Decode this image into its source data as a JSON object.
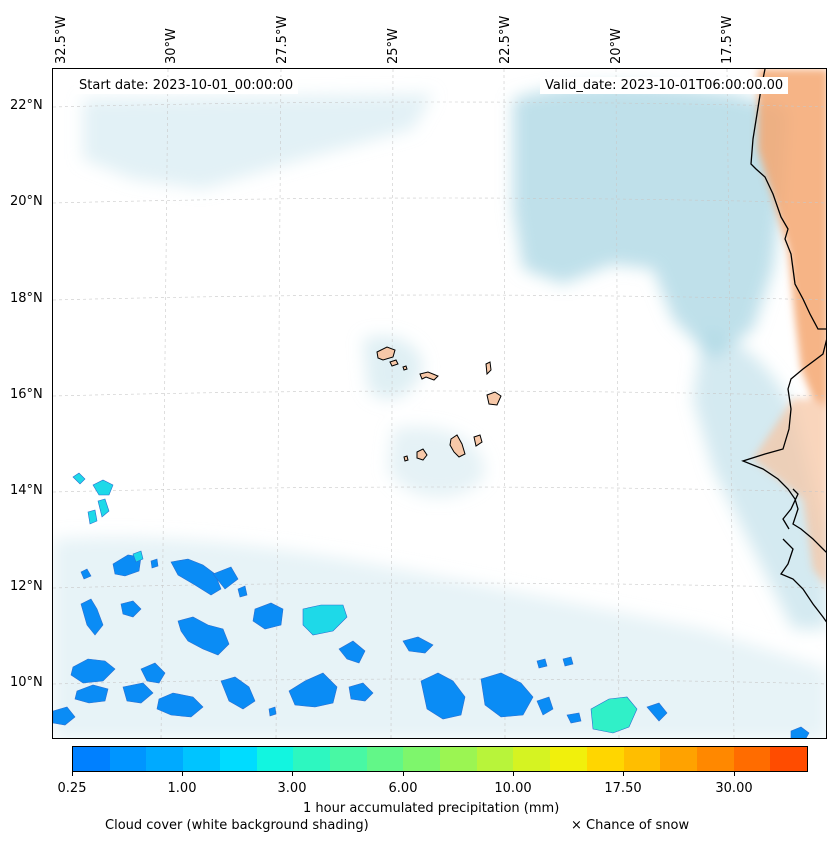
{
  "map": {
    "lon_labels": [
      "32.5°W",
      "30°W",
      "27.5°W",
      "25°W",
      "22.5°W",
      "20°W",
      "17.5°W"
    ],
    "lat_labels": [
      "22°N",
      "20°N",
      "18°N",
      "16°N",
      "14°N",
      "12°N",
      "10°N"
    ],
    "start_date": "Start date: 2023-10-01_00:00:00",
    "valid_date": "Valid_date: 2023-10-01T06:00:00.00",
    "extent": {
      "lon": [
        -32.6,
        -15.0
      ],
      "lat": [
        8.9,
        22.8
      ]
    }
  },
  "colorbar": {
    "title": "1 hour accumulated precipitation (mm)",
    "tick_labels": [
      "0.25",
      "1.00",
      "3.00",
      "6.00",
      "10.00",
      "17.50",
      "30.00"
    ],
    "colors": [
      "#0080ff",
      "#0095ff",
      "#00aaff",
      "#00c4ff",
      "#00dcff",
      "#12f5e0",
      "#2df7c0",
      "#48f8a4",
      "#62f788",
      "#7ef66c",
      "#9bf552",
      "#b8f43a",
      "#d5f322",
      "#f1f00c",
      "#ffd600",
      "#ffbe00",
      "#ffa200",
      "#ff8800",
      "#ff6c00",
      "#ff4c00"
    ]
  },
  "captions": {
    "cloud": "Cloud cover (white background shading)",
    "snow": "× Chance of snow"
  },
  "colors": {
    "cloud": "#a9d6e3",
    "land": "#f5a772",
    "precip_blue": "#0a8cf5",
    "precip_cyan": "#1ed9e8",
    "precip_teal": "#30f0c8"
  }
}
